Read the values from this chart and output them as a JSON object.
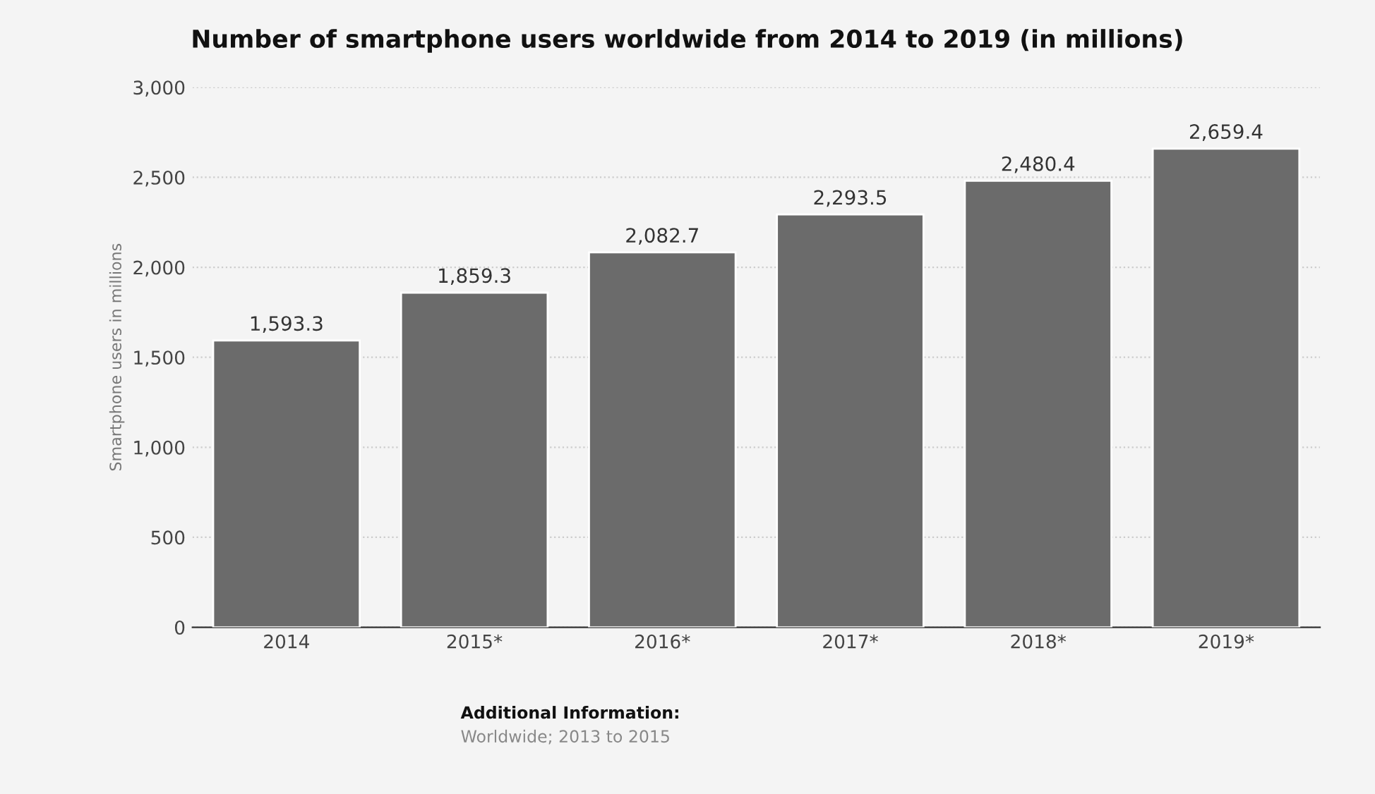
{
  "chart_data": {
    "type": "bar",
    "title": "Number of smartphone users worldwide from 2014 to 2019 (in millions)",
    "ylabel": "Smartphone users in millions",
    "categories": [
      "2014",
      "2015*",
      "2016*",
      "2017*",
      "2018*",
      "2019*"
    ],
    "values": [
      1593.3,
      1859.3,
      2082.7,
      2293.5,
      2480.4,
      2659.4
    ],
    "value_labels": [
      "1,593.3",
      "1,859.3",
      "2,082.7",
      "2,293.5",
      "2,480.4",
      "2,659.4"
    ],
    "color": "#6b6b6b",
    "ylim": [
      0,
      3000
    ],
    "yticks": [
      0,
      500,
      {
        "value": 1000,
        "label": "1,000"
      },
      {
        "value": 1500,
        "label": "1,500"
      },
      {
        "value": 2000,
        "label": "2,000"
      },
      {
        "value": 2500,
        "label": "2,500"
      },
      {
        "value": 3000,
        "label": "3,000"
      }
    ],
    "grid": "y",
    "annotations": [
      "Additional Information:",
      "Worldwide; 2013 to 2015"
    ]
  }
}
